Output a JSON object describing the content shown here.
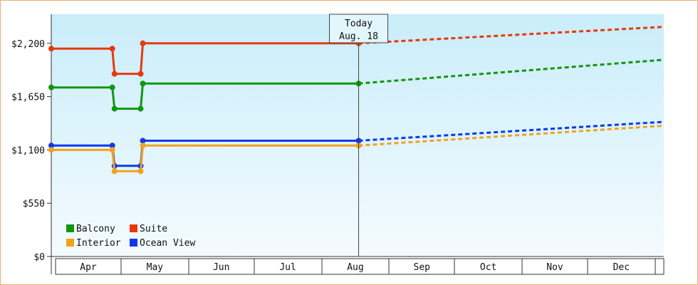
{
  "chart_data": {
    "type": "line",
    "x_axis": {
      "months": [
        "Apr",
        "May",
        "Jun",
        "Jul",
        "Aug",
        "Sep",
        "Oct",
        "Nov",
        "Dec"
      ],
      "range": [
        "2024-03-30",
        "2025-01-05"
      ]
    },
    "y_axis": {
      "ylim": [
        0,
        2500
      ],
      "ticks": [
        0,
        550,
        1100,
        1650,
        2200
      ],
      "tick_labels": [
        "$0",
        "$550",
        "$1,100",
        "$1,650",
        "$2,200"
      ]
    },
    "today_marker": {
      "line1": "Today",
      "line2": "Aug. 18",
      "date": "2024-08-18"
    },
    "legend": {
      "placement": "bottom-left"
    },
    "series": [
      {
        "name": "Suite",
        "color": "#e8380d",
        "values": [
          [
            "2024-03-30",
            2145
          ],
          [
            "2024-04-27",
            2145
          ],
          [
            "2024-04-28",
            1885
          ],
          [
            "2024-05-10",
            1885
          ],
          [
            "2024-05-11",
            2200
          ],
          [
            "2024-08-18",
            2200
          ]
        ],
        "projection": [
          [
            "2024-08-18",
            2200
          ],
          [
            "2025-01-05",
            2370
          ]
        ]
      },
      {
        "name": "Balcony",
        "color": "#12960f",
        "values": [
          [
            "2024-03-30",
            1745
          ],
          [
            "2024-04-27",
            1745
          ],
          [
            "2024-04-28",
            1525
          ],
          [
            "2024-05-10",
            1525
          ],
          [
            "2024-05-11",
            1785
          ],
          [
            "2024-08-18",
            1785
          ]
        ],
        "projection": [
          [
            "2024-08-18",
            1785
          ],
          [
            "2025-01-05",
            2030
          ]
        ]
      },
      {
        "name": "Ocean View",
        "color": "#0a3aee",
        "values": [
          [
            "2024-03-30",
            1145
          ],
          [
            "2024-04-27",
            1145
          ],
          [
            "2024-04-28",
            935
          ],
          [
            "2024-05-10",
            935
          ],
          [
            "2024-05-11",
            1195
          ],
          [
            "2024-08-18",
            1195
          ]
        ],
        "projection": [
          [
            "2024-08-18",
            1195
          ],
          [
            "2025-01-05",
            1390
          ]
        ]
      },
      {
        "name": "Interior",
        "color": "#f2a21c",
        "values": [
          [
            "2024-03-30",
            1100
          ],
          [
            "2024-04-27",
            1100
          ],
          [
            "2024-04-28",
            880
          ],
          [
            "2024-05-10",
            880
          ],
          [
            "2024-05-11",
            1145
          ],
          [
            "2024-08-18",
            1145
          ]
        ],
        "projection": [
          [
            "2024-08-18",
            1145
          ],
          [
            "2025-01-05",
            1350
          ]
        ]
      }
    ],
    "legend_order": [
      "Balcony",
      "Suite",
      "Interior",
      "Ocean View"
    ],
    "plot_gradient": {
      "top": "#c9edfa",
      "bottom": "#f4fbfe"
    }
  }
}
